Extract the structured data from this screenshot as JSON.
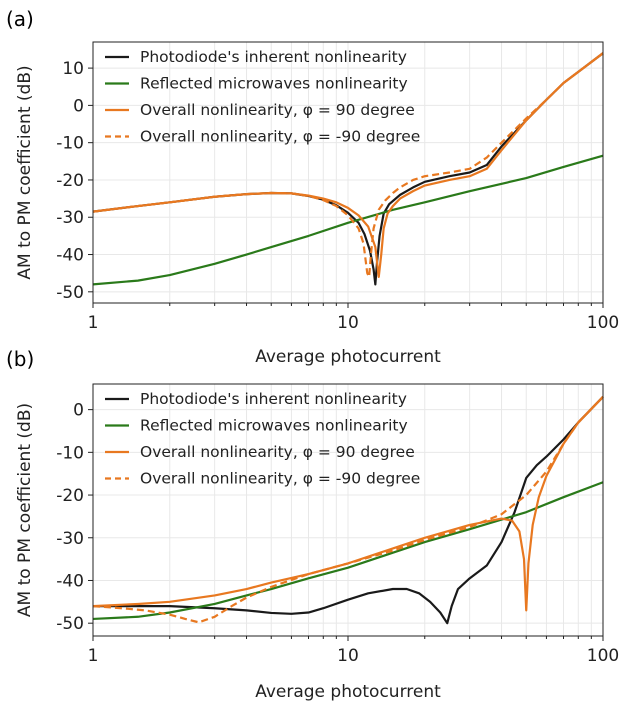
{
  "chart_data": [
    {
      "type": "line",
      "panel_label": "(a)",
      "xlabel": "Average photocurrent",
      "ylabel": "AM to PM coefficient (dB)",
      "xscale": "log",
      "xlim": [
        1,
        100
      ],
      "ylim": [
        -53,
        17
      ],
      "xticks": [
        1,
        10,
        100
      ],
      "xtick_labels": [
        "1",
        "10",
        "100"
      ],
      "yticks": [
        -50,
        -40,
        -30,
        -20,
        -10,
        0,
        10
      ],
      "ytick_labels": [
        "-50",
        "-40",
        "-30",
        "-20",
        "-10",
        "0",
        "10"
      ],
      "grid": true,
      "legend_position": "top-left",
      "series": [
        {
          "name": "Photodiode's inherent nonlinearity",
          "color": "#1a1a1a",
          "dash": "solid",
          "x": [
            1,
            1.5,
            2,
            3,
            4,
            5,
            6,
            7,
            8,
            9,
            10,
            11,
            11.6,
            12.2,
            12.6,
            12.8,
            13.0,
            13.3,
            13.8,
            14.5,
            16,
            18,
            20,
            25,
            30,
            35,
            40,
            50,
            60,
            70,
            80,
            100
          ],
          "y": [
            -28.5,
            -27,
            -26,
            -24.5,
            -23.8,
            -23.5,
            -23.6,
            -24.3,
            -25.3,
            -26.8,
            -28.8,
            -31.5,
            -34.5,
            -39,
            -44,
            -48,
            -42,
            -35,
            -29,
            -26.5,
            -24,
            -22,
            -20.5,
            -19,
            -18,
            -16,
            -11,
            -4,
            1.5,
            6,
            9,
            14
          ]
        },
        {
          "name": "Reflected microwaves nonlinearity",
          "color": "#2a7a1a",
          "dash": "solid",
          "x": [
            1,
            1.5,
            2,
            3,
            4,
            5,
            7,
            10,
            15,
            20,
            30,
            50,
            70,
            100
          ],
          "y": [
            -48,
            -47,
            -45.5,
            -42.5,
            -40,
            -38,
            -35,
            -31.5,
            -28,
            -26,
            -23,
            -19.5,
            -16.5,
            -13.5
          ]
        },
        {
          "name": "Overall nonlinearity, φ = 90 degree",
          "color": "#e87820",
          "dash": "solid",
          "x": [
            1,
            1.5,
            2,
            3,
            4,
            5,
            6,
            7,
            8,
            9,
            10,
            11,
            12,
            12.8,
            13.2,
            13.5,
            13.8,
            14.3,
            15,
            16,
            18,
            20,
            25,
            30,
            35,
            40,
            50,
            60,
            70,
            80,
            100
          ],
          "y": [
            -28.5,
            -27,
            -26,
            -24.5,
            -23.8,
            -23.5,
            -23.6,
            -24.2,
            -25,
            -26,
            -27.5,
            -29.5,
            -32.5,
            -38,
            -46,
            -40,
            -33,
            -29,
            -27,
            -25,
            -23,
            -21.5,
            -20,
            -19,
            -17,
            -12,
            -4,
            1.5,
            6,
            9,
            14
          ]
        },
        {
          "name": "Overall nonlinearity, φ = -90 degree",
          "color": "#e87820",
          "dash": "dashed",
          "x": [
            1,
            1.5,
            2,
            3,
            4,
            5,
            6,
            7,
            8,
            9,
            10,
            11,
            11.5,
            11.9,
            12.1,
            12.3,
            12.6,
            13.2,
            14,
            15,
            16,
            18,
            20,
            25,
            30,
            35,
            40,
            50,
            60,
            70,
            80,
            100
          ],
          "y": [
            -28.5,
            -27,
            -26,
            -24.5,
            -23.8,
            -23.5,
            -23.6,
            -24.3,
            -25.4,
            -27,
            -29.5,
            -33,
            -37,
            -45,
            -46,
            -40,
            -33,
            -28,
            -25.5,
            -23.5,
            -22,
            -20,
            -19,
            -18,
            -17,
            -14,
            -10,
            -3.5,
            1.5,
            6,
            9,
            14
          ]
        }
      ]
    },
    {
      "type": "line",
      "panel_label": "(b)",
      "xlabel": "Average photocurrent",
      "ylabel": "AM to PM coefficient (dB)",
      "xscale": "log",
      "xlim": [
        1,
        100
      ],
      "ylim": [
        -53,
        6
      ],
      "xticks": [
        1,
        10,
        100
      ],
      "xtick_labels": [
        "1",
        "10",
        "100"
      ],
      "yticks": [
        -50,
        -40,
        -30,
        -20,
        -10,
        0
      ],
      "ytick_labels": [
        "-50",
        "-40",
        "-30",
        "-20",
        "-10",
        "0"
      ],
      "grid": true,
      "legend_position": "top-left",
      "series": [
        {
          "name": "Photodiode's inherent nonlinearity",
          "color": "#1a1a1a",
          "dash": "solid",
          "x": [
            1,
            1.5,
            2,
            3,
            4,
            5,
            6,
            7,
            8,
            10,
            12,
            15,
            17,
            19,
            21,
            23,
            24.5,
            25.5,
            27,
            30,
            35,
            40,
            45,
            50,
            55,
            60,
            70,
            80,
            100
          ],
          "y": [
            -46,
            -46,
            -46,
            -46.5,
            -47,
            -47.6,
            -47.8,
            -47.5,
            -46.5,
            -44.5,
            -43,
            -42,
            -42,
            -43,
            -45,
            -47.5,
            -50,
            -46,
            -42,
            -39.5,
            -36.5,
            -31,
            -24,
            -16,
            -13,
            -11,
            -7,
            -3,
            3
          ]
        },
        {
          "name": "Reflected microwaves nonlinearity",
          "color": "#2a7a1a",
          "dash": "solid",
          "x": [
            1,
            1.5,
            2,
            3,
            4,
            5,
            7,
            10,
            15,
            20,
            30,
            50,
            70,
            100
          ],
          "y": [
            -49,
            -48.5,
            -47.5,
            -45.5,
            -43.5,
            -42,
            -39.5,
            -37,
            -33.5,
            -31,
            -28,
            -24,
            -20.5,
            -17
          ]
        },
        {
          "name": "Overall nonlinearity, φ = 90 degree",
          "color": "#e87820",
          "dash": "solid",
          "x": [
            1,
            1.5,
            2,
            3,
            4,
            5,
            7,
            10,
            15,
            20,
            30,
            40,
            44,
            47,
            49,
            50,
            51,
            53,
            56,
            60,
            70,
            80,
            100
          ],
          "y": [
            -46,
            -45.5,
            -45,
            -43.5,
            -42,
            -40.5,
            -38.5,
            -36,
            -32.5,
            -30,
            -27,
            -25.5,
            -26,
            -28.5,
            -35,
            -47,
            -36,
            -27,
            -20.5,
            -15.5,
            -8,
            -3,
            3
          ]
        },
        {
          "name": "Overall nonlinearity, φ = -90 degree",
          "color": "#e87820",
          "dash": "dashed",
          "x": [
            1,
            1.3,
            1.6,
            2,
            2.3,
            2.6,
            3,
            3.5,
            4,
            5,
            7,
            10,
            15,
            20,
            30,
            40,
            50,
            60,
            70,
            80,
            100
          ],
          "y": [
            -46,
            -46.5,
            -47,
            -48,
            -49,
            -49.8,
            -48.5,
            -46,
            -44,
            -41.5,
            -38.5,
            -36,
            -33,
            -30.5,
            -27.5,
            -24.5,
            -20,
            -14.5,
            -8,
            -3,
            3
          ]
        }
      ]
    }
  ]
}
